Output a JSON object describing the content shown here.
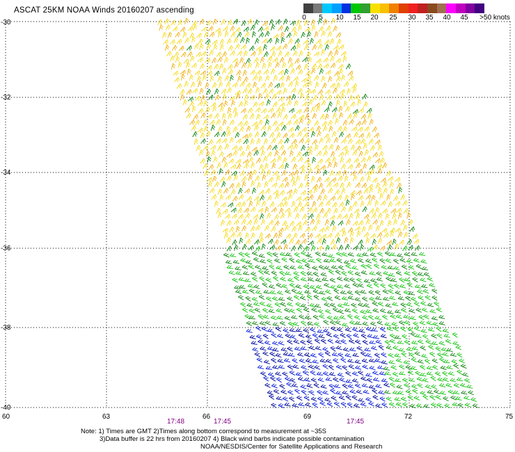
{
  "title": "ASCAT 25KM NOAA Winds 20160207 ascending",
  "colorbar": {
    "colors": [
      "#404040",
      "#7a7a7a",
      "#00c8ff",
      "#00a0ff",
      "#0030e0",
      "#00c800",
      "#30a030",
      "#f8e000",
      "#f8c000",
      "#f08000",
      "#e04000",
      "#f02020",
      "#c02020",
      "#8a4a20",
      "#a07050",
      "#ff00ff",
      "#c000c0",
      "#8000a0",
      "#400080"
    ],
    "labels": [
      "0",
      "5",
      "10",
      "15",
      "20",
      "25",
      "30",
      "35",
      "40",
      "45",
      ">50 knots"
    ]
  },
  "axes": {
    "lat_labels": [
      "-30",
      "-32",
      "-34",
      "-36",
      "-38",
      "-40"
    ],
    "lon_labels": [
      "60",
      "63",
      "66",
      "69",
      "72",
      "75"
    ],
    "lat_range": [
      -40,
      -30
    ],
    "lon_range": [
      60,
      75
    ]
  },
  "times": [
    "17:48",
    "17:45",
    "17:45"
  ],
  "notes": {
    "line1": "Note: 1) Times are GMT 2)Times along bottom correspond to measurement at ~35S",
    "line2": "3)Data buffer is 22 hrs from 20160207 4) Black wind barbs indicate possible contamination",
    "line3": "NOAA/NESDIS/Center for Satellite Applications and Research"
  },
  "barb_colors": {
    "light_green": "#22c81e",
    "dark_green": "#1e8c1e",
    "yellow": "#f5dc28",
    "orange": "#f0b41e",
    "blue": "#1428dc",
    "dark_blue": "#0a14a0"
  }
}
